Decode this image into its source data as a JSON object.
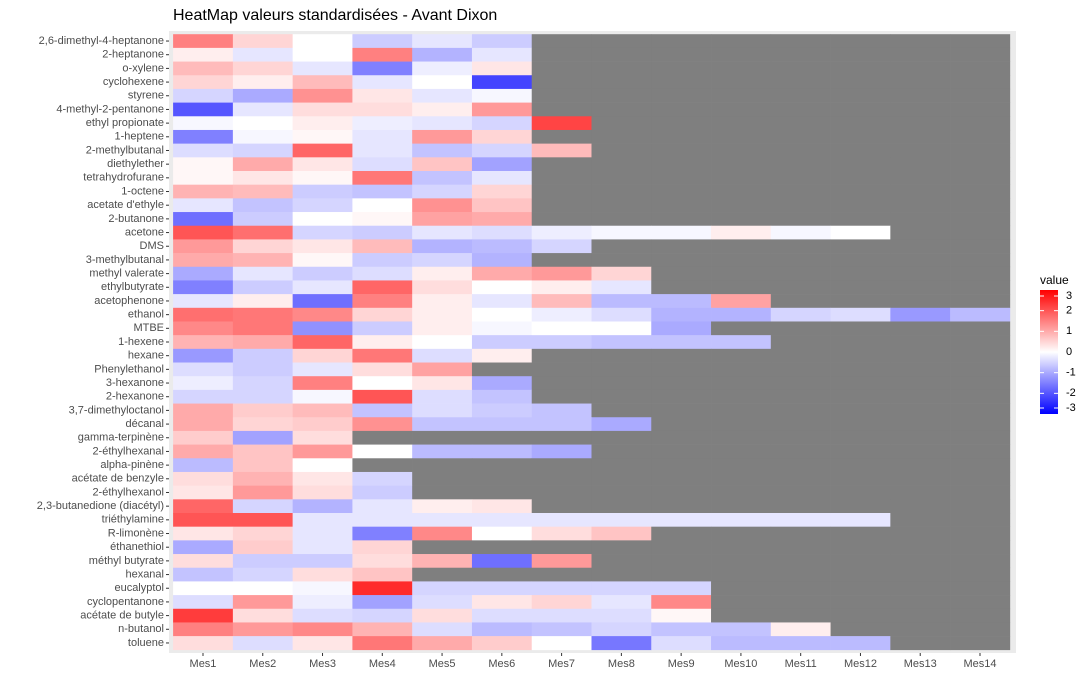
{
  "chart_data": {
    "type": "heatmap",
    "title": "HeatMap valeurs standardisées - Avant Dixon",
    "columns": [
      "Mes1",
      "Mes2",
      "Mes3",
      "Mes4",
      "Mes5",
      "Mes6",
      "Mes7",
      "Mes8",
      "Mes9",
      "Mes10",
      "Mes11",
      "Mes12",
      "Mes13",
      "Mes14"
    ],
    "rows": [
      "2,6-dimethyl-4-heptanone",
      "2-heptanone",
      "o-xylene",
      "cyclohexene",
      "styrene",
      "4-methyl-2-pentanone",
      "ethyl propionate",
      "1-heptene",
      "2-methylbutanal",
      "diethylether",
      "tetrahydrofurane",
      "1-octene",
      "acetate d'ethyle",
      "2-butanone",
      "acetone",
      "DMS",
      "3-methylbutanal",
      "methyl valerate",
      "ethylbutyrate",
      "acetophenone",
      "ethanol",
      "MTBE",
      "1-hexene",
      "hexane",
      "Phenylethanol",
      "3-hexanone",
      "2-hexanone",
      "3,7-dimethyloctanol",
      "décanal",
      "gamma-terpinène",
      "2-éthylhexanal",
      "alpha-pinène",
      "acétate de benzyle",
      "2-éthylhexanol",
      "2,3-butanedione (diacétyl)",
      "triéthylamine",
      "R-limonène",
      "éthanethiol",
      "méthyl butyrate",
      "hexanal",
      "eucalyptol",
      "cyclopentanone",
      "acétate de butyle",
      "n-butanol",
      "toluene"
    ],
    "values": [
      [
        1.5,
        0.5,
        0,
        -0.6,
        -0.3,
        -0.6,
        null,
        null,
        null,
        null,
        null,
        null,
        null,
        null
      ],
      [
        0.2,
        -0.3,
        0,
        1.5,
        -0.9,
        -0.3,
        null,
        null,
        null,
        null,
        null,
        null,
        null,
        null
      ],
      [
        0.8,
        0.5,
        -0.3,
        -1.5,
        -0.2,
        0.3,
        null,
        null,
        null,
        null,
        null,
        null,
        null,
        null
      ],
      [
        0.5,
        0.2,
        0.8,
        -0.3,
        0,
        -2.2,
        null,
        null,
        null,
        null,
        null,
        null,
        null,
        null
      ],
      [
        -0.5,
        -1,
        1.3,
        0.3,
        -0.3,
        -0.1,
        null,
        null,
        null,
        null,
        null,
        null,
        null,
        null
      ],
      [
        -2,
        -0.3,
        0.4,
        0.4,
        0.2,
        1.2,
        null,
        null,
        null,
        null,
        null,
        null,
        null,
        null
      ],
      [
        -0.1,
        0,
        0.2,
        -0.2,
        -0.3,
        -0.5,
        2.2,
        null,
        null,
        null,
        null,
        null,
        null,
        null
      ],
      [
        -1.5,
        -0.1,
        0.1,
        -0.3,
        1.2,
        0.5,
        null,
        null,
        null,
        null,
        null,
        null,
        null,
        null
      ],
      [
        -0.4,
        -0.5,
        1.8,
        -0.3,
        -0.7,
        -0.5,
        0.8,
        null,
        null,
        null,
        null,
        null,
        null,
        null
      ],
      [
        0.1,
        1,
        0.3,
        -0.4,
        0.7,
        -1.1,
        null,
        null,
        null,
        null,
        null,
        null,
        null,
        null
      ],
      [
        0.1,
        0.3,
        0.1,
        1.6,
        -0.7,
        -0.3,
        null,
        null,
        null,
        null,
        null,
        null,
        null,
        null
      ],
      [
        0.9,
        0.8,
        -0.6,
        -0.7,
        -0.5,
        0.5,
        null,
        null,
        null,
        null,
        null,
        null,
        null,
        null
      ],
      [
        -0.3,
        -0.7,
        -0.5,
        0,
        1.3,
        0.7,
        null,
        null,
        null,
        null,
        null,
        null,
        null,
        null
      ],
      [
        -1.7,
        -0.6,
        0,
        0.1,
        1.1,
        1,
        null,
        null,
        null,
        null,
        null,
        null,
        null,
        null
      ],
      [
        2,
        1.7,
        -0.5,
        -0.6,
        -0.3,
        -0.4,
        -0.2,
        -0.1,
        -0.1,
        0.2,
        -0.1,
        0,
        null,
        null
      ],
      [
        1.2,
        0.5,
        0.3,
        0.8,
        -0.9,
        -0.8,
        -0.5,
        null,
        null,
        null,
        null,
        null,
        null,
        null
      ],
      [
        1,
        0.9,
        0.1,
        -0.6,
        -0.5,
        -0.9,
        null,
        null,
        null,
        null,
        null,
        null,
        null,
        null
      ],
      [
        -1,
        -0.3,
        -0.6,
        -0.4,
        0.2,
        1,
        1.2,
        0.5,
        null,
        null,
        null,
        null,
        null,
        null
      ],
      [
        -1.5,
        -0.6,
        -0.3,
        1.8,
        0.4,
        0,
        0.2,
        -0.3,
        null,
        null,
        null,
        null,
        null,
        null
      ],
      [
        -0.3,
        0.2,
        -1.7,
        1.5,
        0.2,
        -0.3,
        0.8,
        -0.8,
        -0.8,
        1.1,
        null,
        null,
        null,
        null
      ],
      [
        1.7,
        1.6,
        1.4,
        0.5,
        0.2,
        0,
        -0.2,
        -0.4,
        -0.9,
        -0.9,
        -0.5,
        -0.4,
        -1.2,
        -0.8
      ],
      [
        1.4,
        1.6,
        -1.3,
        -0.6,
        0.2,
        -0.1,
        0,
        0,
        -1,
        null,
        null,
        null,
        null,
        null
      ],
      [
        0.9,
        1,
        1.8,
        0.2,
        0,
        -0.6,
        -0.6,
        -0.7,
        -0.7,
        -0.7,
        null,
        null,
        null,
        null
      ],
      [
        -1.2,
        -0.6,
        0.5,
        1.6,
        -0.4,
        0.2,
        null,
        null,
        null,
        null,
        null,
        null,
        null,
        null
      ],
      [
        -0.4,
        -0.6,
        -0.3,
        0.4,
        1.1,
        null,
        null,
        null,
        null,
        null,
        null,
        null,
        null,
        null
      ],
      [
        -0.2,
        -0.5,
        1.5,
        0,
        0.3,
        -1,
        null,
        null,
        null,
        null,
        null,
        null,
        null,
        null
      ],
      [
        -0.5,
        -0.5,
        -0.1,
        2,
        -0.4,
        -0.7,
        null,
        null,
        null,
        null,
        null,
        null,
        null,
        null
      ],
      [
        1,
        0.6,
        0.8,
        -0.7,
        -0.4,
        -0.6,
        -0.7,
        null,
        null,
        null,
        null,
        null,
        null,
        null
      ],
      [
        1,
        0.5,
        0.6,
        1.3,
        -0.7,
        -0.7,
        -0.7,
        -1,
        null,
        null,
        null,
        null,
        null,
        null
      ],
      [
        0.6,
        -1.1,
        0.4,
        null,
        null,
        null,
        null,
        null,
        null,
        null,
        null,
        null,
        null,
        null
      ],
      [
        1,
        0.7,
        1.2,
        0,
        -0.8,
        -0.8,
        -1,
        null,
        null,
        null,
        null,
        null,
        null,
        null
      ],
      [
        -0.8,
        0.7,
        0,
        null,
        null,
        null,
        null,
        null,
        null,
        null,
        null,
        null,
        null,
        null
      ],
      [
        0.4,
        0.9,
        0.3,
        -0.5,
        null,
        null,
        null,
        null,
        null,
        null,
        null,
        null,
        null,
        null
      ],
      [
        0.3,
        1.2,
        0.4,
        -0.6,
        null,
        null,
        null,
        null,
        null,
        null,
        null,
        null,
        null,
        null
      ],
      [
        1.8,
        -0.5,
        -0.9,
        -0.3,
        0.2,
        0.3,
        null,
        null,
        null,
        null,
        null,
        null,
        null,
        null
      ],
      [
        2,
        2,
        -0.3,
        -0.3,
        -0.3,
        -0.3,
        -0.3,
        -0.3,
        -0.3,
        -0.3,
        -0.3,
        -0.3,
        null,
        null
      ],
      [
        0.3,
        0.5,
        -0.3,
        -1.5,
        1.4,
        0,
        0.4,
        0.7,
        null,
        null,
        null,
        null,
        null,
        null
      ],
      [
        -1,
        0.6,
        -0.3,
        0.5,
        null,
        null,
        null,
        null,
        null,
        null,
        null,
        null,
        null,
        null
      ],
      [
        0.4,
        -0.6,
        -0.6,
        0.4,
        0.9,
        -1.7,
        1.2,
        null,
        null,
        null,
        null,
        null,
        null,
        null
      ],
      [
        -0.7,
        -0.5,
        0.4,
        0.7,
        null,
        null,
        null,
        null,
        null,
        null,
        null,
        null,
        null,
        null
      ],
      [
        0,
        0,
        -0.1,
        2.5,
        -0.5,
        -0.5,
        -0.5,
        -0.5,
        -0.5,
        null,
        null,
        null,
        null,
        null
      ],
      [
        -0.4,
        1.2,
        -0.2,
        -1.1,
        -0.4,
        0.3,
        0.5,
        -0.3,
        1.4,
        null,
        null,
        null,
        null,
        null
      ],
      [
        2.3,
        0.4,
        -0.4,
        -0.5,
        0.4,
        -0.4,
        -0.4,
        -0.4,
        0.1,
        null,
        null,
        null,
        null,
        null
      ],
      [
        1.5,
        1.2,
        1.4,
        0.9,
        -0.4,
        -0.8,
        -0.7,
        -0.5,
        -0.7,
        -0.7,
        0.2,
        null,
        null,
        null
      ],
      [
        0.4,
        -0.4,
        0.3,
        1.6,
        1,
        0.6,
        0,
        -1.6,
        -0.4,
        -0.8,
        -0.8,
        -0.8,
        null,
        null
      ]
    ],
    "color_scale": {
      "low": "#0000ff",
      "mid": "#ffffff",
      "high": "#ff0000",
      "limits": [
        -3,
        3
      ]
    },
    "missing_color": "#7f7f7f",
    "legend_title": "value",
    "legend_ticks": [
      3,
      2,
      1,
      0,
      -1,
      -2,
      -3
    ]
  }
}
